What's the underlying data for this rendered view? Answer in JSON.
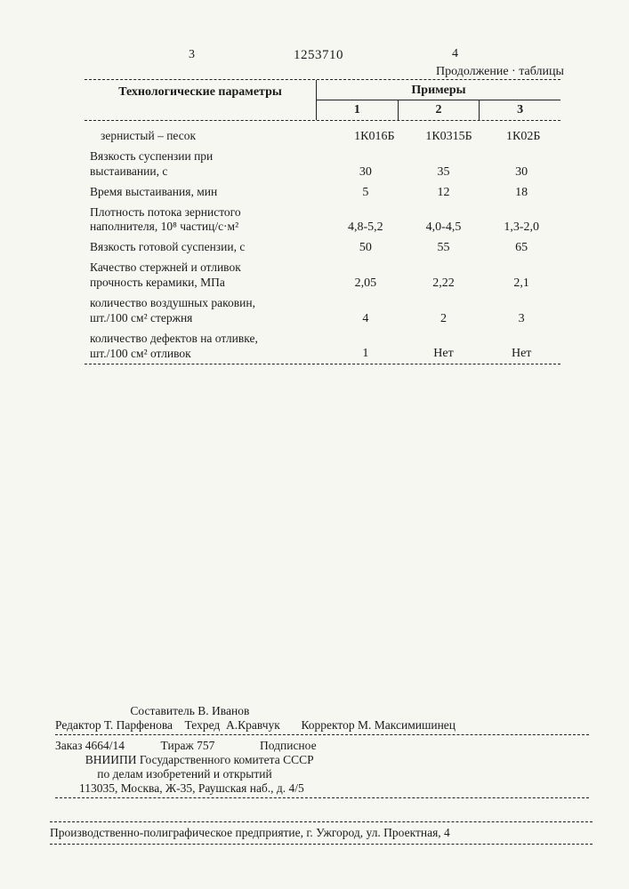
{
  "page_left": "3",
  "page_right": "4",
  "doc_id": "1253710",
  "continuation": "Продолжение · таблицы",
  "table": {
    "header_left": "Технологические параметры",
    "header_right": "Примеры",
    "cols": [
      "1",
      "2",
      "3"
    ],
    "rows": [
      {
        "label": "зернистый – песок",
        "indent": true,
        "v": [
          "1К016Б",
          "1К0315Б",
          "1К02Б"
        ]
      },
      {
        "label": "Вязкость суспензии при\nвыстаивании, с",
        "v": [
          "30",
          "35",
          "30"
        ]
      },
      {
        "label": "Время выстаивания, мин",
        "v": [
          "5",
          "12",
          "18"
        ]
      },
      {
        "label": "Плотность потока зернистого\nнаполнителя, 10⁸ частиц/с·м²",
        "v": [
          "4,8-5,2",
          "4,0-4,5",
          "1,3-2,0"
        ]
      },
      {
        "label": "Вязкость готовой суспензии, с",
        "v": [
          "50",
          "55",
          "65"
        ]
      },
      {
        "label": "Качество стержней и отливок\nпрочность керамики, МПа",
        "v": [
          "2,05",
          "2,22",
          "2,1"
        ]
      },
      {
        "label": "количество воздушных раковин,\nшт./100 см² стержня",
        "v": [
          "4",
          "2",
          "3"
        ]
      },
      {
        "label": "количество дефектов на отливке,\nшт./100 см² отливок",
        "v": [
          "1",
          "Нет",
          "Нет"
        ]
      }
    ]
  },
  "footer": {
    "l1": "                         Составитель В. Иванов",
    "l2": "Редактор Т. Парфенова    Техред  А.Кравчук       Корректор М. Максимишинец",
    "l3": "Заказ 4664/14            Тираж 757               Подписное",
    "l4": "          ВНИИПИ Государственного комитета СССР",
    "l5": "              по делам изобретений и открытий",
    "l6": "        113035, Москва, Ж-35, Раушская наб., д. 4/5"
  },
  "printer": "Производственно-полиграфическое предприятие, г. Ужгород, ул. Проектная, 4"
}
